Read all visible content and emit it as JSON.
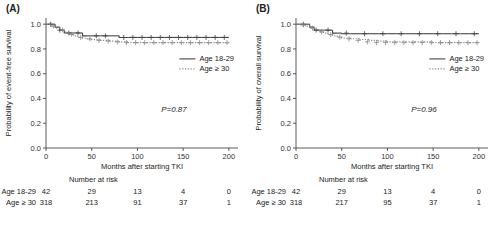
{
  "chart_data": [
    {
      "type": "step",
      "title": "(A)",
      "xlabel": "Months after starting TKI",
      "ylabel": "Probability of event-free survival",
      "xlim": [
        0,
        210
      ],
      "ylim": [
        0.0,
        1.05
      ],
      "xticks": [
        0,
        50,
        100,
        150,
        200
      ],
      "yticks": [
        {
          "value": 0.0,
          "label": "0.0"
        },
        0.2,
        0.4,
        0.6,
        0.8,
        {
          "value": 1.0,
          "label": "1.0"
        }
      ],
      "grid": false,
      "legend": "upper right",
      "annotations": [
        "P=0.87"
      ],
      "series": [
        {
          "name": "Age 18-29",
          "color": "#444444",
          "line_style": "solid",
          "marker": "plus",
          "x": [
            0,
            5,
            10,
            15,
            20,
            25,
            30,
            35,
            40,
            45,
            50,
            60,
            70,
            80,
            90,
            100,
            110,
            120,
            130,
            140,
            150,
            160,
            170,
            180,
            190,
            200
          ],
          "values": [
            1.0,
            1.0,
            0.976,
            0.952,
            0.929,
            0.929,
            0.929,
            0.929,
            0.906,
            0.906,
            0.906,
            0.906,
            0.906,
            0.893,
            0.893,
            0.893,
            0.893,
            0.893,
            0.893,
            0.893,
            0.893,
            0.893,
            0.893,
            0.893,
            0.893,
            0.893
          ],
          "censor_x": [
            5,
            15,
            25,
            35,
            55,
            65,
            85,
            95,
            105,
            115,
            125,
            135,
            145,
            155,
            165,
            175,
            185,
            195
          ],
          "censor_y": [
            1.0,
            0.952,
            0.929,
            0.929,
            0.906,
            0.906,
            0.893,
            0.893,
            0.893,
            0.893,
            0.893,
            0.893,
            0.893,
            0.893,
            0.893,
            0.893,
            0.893,
            0.893
          ]
        },
        {
          "name": "Age ≥ 30",
          "color": "#888888",
          "line_style": "dotted",
          "marker": "plus",
          "x": [
            0,
            5,
            10,
            15,
            20,
            25,
            30,
            35,
            40,
            45,
            50,
            60,
            70,
            80,
            90,
            100,
            110,
            120,
            130,
            140,
            150,
            160,
            170,
            180,
            190,
            200
          ],
          "values": [
            1.0,
            0.984,
            0.968,
            0.953,
            0.937,
            0.918,
            0.906,
            0.893,
            0.887,
            0.881,
            0.875,
            0.869,
            0.863,
            0.857,
            0.851,
            0.851,
            0.851,
            0.851,
            0.851,
            0.851,
            0.851,
            0.851,
            0.851,
            0.851,
            0.851,
            0.851
          ],
          "censor_x": [
            8,
            18,
            28,
            38,
            48,
            58,
            68,
            78,
            88,
            98,
            108,
            118,
            128,
            138,
            148,
            158,
            168,
            178,
            188,
            198
          ],
          "censor_y": [
            0.984,
            0.953,
            0.918,
            0.893,
            0.881,
            0.869,
            0.863,
            0.857,
            0.851,
            0.851,
            0.851,
            0.851,
            0.851,
            0.851,
            0.851,
            0.851,
            0.851,
            0.851,
            0.851,
            0.851
          ]
        }
      ],
      "risk_table_title": "Number at risk",
      "risk_table": [
        {
          "name": "Age 18-29",
          "values": [
            42,
            29,
            13,
            4,
            0
          ]
        },
        {
          "name": "Age ≥ 30",
          "values": [
            318,
            213,
            91,
            37,
            1
          ]
        }
      ]
    },
    {
      "type": "step",
      "title": "(B)",
      "xlabel": "Months after starting TKI",
      "ylabel": "Probability of overall survival",
      "xlim": [
        0,
        210
      ],
      "ylim": [
        0.0,
        1.05
      ],
      "xticks": [
        0,
        50,
        100,
        150,
        200
      ],
      "yticks": [
        {
          "value": 0.0,
          "label": "0.0"
        },
        0.2,
        0.4,
        0.6,
        0.8,
        {
          "value": 1.0,
          "label": "1.0"
        }
      ],
      "grid": false,
      "legend": "upper right",
      "annotations": [
        "P=0.96"
      ],
      "series": [
        {
          "name": "Age 18-29",
          "color": "#444444",
          "line_style": "solid",
          "marker": "plus",
          "x": [
            0,
            5,
            10,
            15,
            20,
            25,
            30,
            35,
            40,
            45,
            50,
            60,
            70,
            80,
            90,
            100,
            110,
            120,
            130,
            140,
            150,
            160,
            170,
            180,
            190,
            200
          ],
          "values": [
            1.0,
            1.0,
            1.0,
            0.976,
            0.952,
            0.952,
            0.952,
            0.952,
            0.928,
            0.928,
            0.923,
            0.923,
            0.923,
            0.923,
            0.923,
            0.923,
            0.923,
            0.923,
            0.923,
            0.923,
            0.923,
            0.923,
            0.923,
            0.923,
            0.923,
            0.923
          ],
          "censor_x": [
            8,
            22,
            35,
            55,
            75,
            95,
            115,
            135,
            155,
            175,
            195
          ],
          "censor_y": [
            1.0,
            0.952,
            0.952,
            0.928,
            0.923,
            0.923,
            0.923,
            0.923,
            0.923,
            0.923,
            0.923
          ]
        },
        {
          "name": "Age ≥ 30",
          "color": "#888888",
          "line_style": "dotted",
          "marker": "plus",
          "x": [
            0,
            5,
            10,
            15,
            20,
            25,
            30,
            35,
            40,
            45,
            50,
            60,
            70,
            80,
            90,
            100,
            110,
            120,
            130,
            140,
            150,
            160,
            170,
            180,
            190,
            200
          ],
          "values": [
            1.0,
            0.994,
            0.984,
            0.969,
            0.953,
            0.938,
            0.928,
            0.916,
            0.906,
            0.896,
            0.889,
            0.882,
            0.876,
            0.869,
            0.863,
            0.857,
            0.857,
            0.857,
            0.857,
            0.857,
            0.851,
            0.851,
            0.851,
            0.851,
            0.851,
            0.851
          ],
          "censor_x": [
            8,
            18,
            28,
            38,
            48,
            58,
            68,
            78,
            88,
            98,
            108,
            118,
            128,
            138,
            148,
            158,
            168,
            178,
            188,
            198
          ],
          "censor_y": [
            0.994,
            0.969,
            0.938,
            0.916,
            0.896,
            0.882,
            0.869,
            0.857,
            0.851,
            0.851,
            0.851,
            0.851,
            0.851,
            0.851,
            0.851,
            0.851,
            0.851,
            0.851,
            0.851,
            0.851
          ]
        }
      ],
      "risk_table_title": "Number at risk",
      "risk_table": [
        {
          "name": "Age 18-29",
          "values": [
            42,
            29,
            13,
            4,
            0
          ]
        },
        {
          "name": "Age ≥ 30",
          "values": [
            318,
            217,
            95,
            37,
            1
          ]
        }
      ]
    }
  ]
}
